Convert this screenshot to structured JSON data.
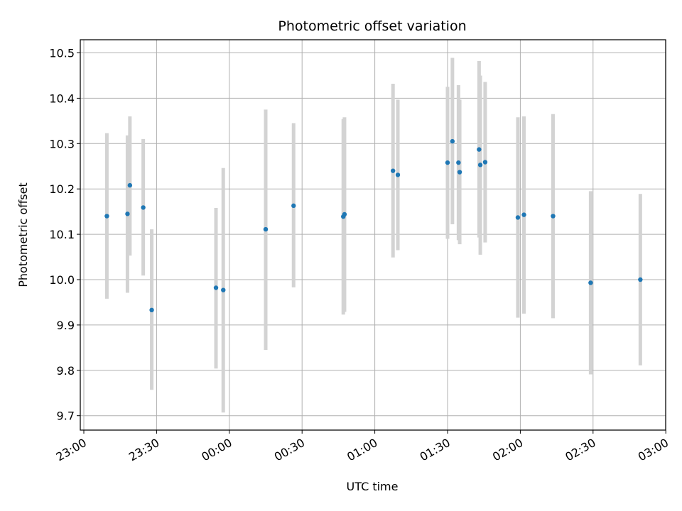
{
  "chart_data": {
    "type": "scatter",
    "title": "Photometric offset variation",
    "xlabel": "UTC time",
    "ylabel": "Photometric offset",
    "x_ticks": [
      "23:00",
      "23:30",
      "00:00",
      "00:30",
      "01:00",
      "01:30",
      "02:00",
      "02:30",
      "03:00"
    ],
    "y_ticks": [
      "9.7",
      "9.8",
      "9.9",
      "10.0",
      "10.1",
      "10.2",
      "10.3",
      "10.4",
      "10.5"
    ],
    "grid": true,
    "colors": {
      "marker": "#1f77b4",
      "errorbar": "#d3d3d3",
      "grid": "#b0b0b0"
    },
    "points": [
      {
        "t": "23:09.5",
        "y": 10.14,
        "lo": 9.958,
        "hi": 10.323
      },
      {
        "t": "23:18.0",
        "y": 10.145,
        "lo": 9.971,
        "hi": 10.318
      },
      {
        "t": "23:19.0",
        "y": 10.208,
        "lo": 10.053,
        "hi": 10.36
      },
      {
        "t": "23:24.5",
        "y": 10.159,
        "lo": 10.009,
        "hi": 10.31
      },
      {
        "t": "23:28.0",
        "y": 9.933,
        "lo": 9.757,
        "hi": 10.111
      },
      {
        "t": "23:54.5",
        "y": 9.982,
        "lo": 9.804,
        "hi": 10.158
      },
      {
        "t": "23:57.5",
        "y": 9.977,
        "lo": 9.707,
        "hi": 10.246
      },
      {
        "t": "00:15.0",
        "y": 10.111,
        "lo": 9.845,
        "hi": 10.375
      },
      {
        "t": "00:26.5",
        "y": 10.163,
        "lo": 9.983,
        "hi": 10.345
      },
      {
        "t": "00:47.0",
        "y": 10.139,
        "lo": 9.923,
        "hi": 10.354
      },
      {
        "t": "00:47.5",
        "y": 10.144,
        "lo": 9.929,
        "hi": 10.358
      },
      {
        "t": "01:07.5",
        "y": 10.24,
        "lo": 10.049,
        "hi": 10.432
      },
      {
        "t": "01:09.5",
        "y": 10.231,
        "lo": 10.065,
        "hi": 10.397
      },
      {
        "t": "01:30.0",
        "y": 10.258,
        "lo": 10.09,
        "hi": 10.425
      },
      {
        "t": "01:32.0",
        "y": 10.305,
        "lo": 10.122,
        "hi": 10.489
      },
      {
        "t": "01:34.5",
        "y": 10.258,
        "lo": 10.087,
        "hi": 10.429
      },
      {
        "t": "01:35.0",
        "y": 10.237,
        "lo": 10.078,
        "hi": 10.397
      },
      {
        "t": "01:43.0",
        "y": 10.287,
        "lo": 10.093,
        "hi": 10.482
      },
      {
        "t": "01:43.5",
        "y": 10.253,
        "lo": 10.055,
        "hi": 10.45
      },
      {
        "t": "01:45.5",
        "y": 10.259,
        "lo": 10.082,
        "hi": 10.436
      },
      {
        "t": "01:59.0",
        "y": 10.137,
        "lo": 9.916,
        "hi": 10.358
      },
      {
        "t": "02:01.5",
        "y": 10.143,
        "lo": 9.925,
        "hi": 10.36
      },
      {
        "t": "02:13.5",
        "y": 10.14,
        "lo": 9.915,
        "hi": 10.365
      },
      {
        "t": "02:29.0",
        "y": 9.993,
        "lo": 9.791,
        "hi": 10.195
      },
      {
        "t": "02:49.5",
        "y": 10.0,
        "lo": 9.811,
        "hi": 10.189
      }
    ]
  }
}
